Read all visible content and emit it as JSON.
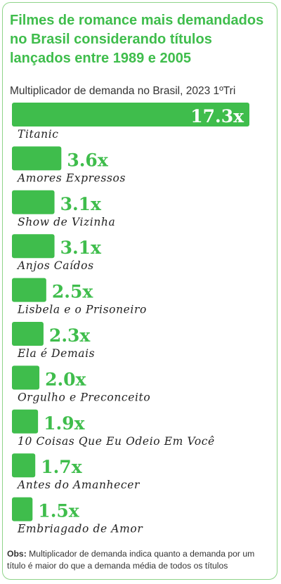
{
  "title": "Filmes de romance mais demandados no Brasil considerando títulos lançados entre 1989 e 2005",
  "subtitle": "Multiplicador de demanda no Brasil, 2023 1ºTri",
  "note": {
    "label": "Obs:",
    "text": " Multiplicador de demanda indica quanto a demanda por um título é maior do que a demanda média de todos os títulos"
  },
  "colors": {
    "accent": "#3fbd4c",
    "bar": "#3fbd4c",
    "value_on_bar": "#ffffff",
    "border": "#8fd48a"
  },
  "chart_data": {
    "type": "bar",
    "orientation": "horizontal",
    "title": "Filmes de romance mais demandados no Brasil considerando títulos lançados entre 1989 e 2005",
    "subtitle": "Multiplicador de demanda no Brasil, 2023 1ºTri",
    "categories": [
      "Titanic",
      "Amores Expressos",
      "Show de Vizinha",
      "Anjos Caídos",
      "Lisbela e o Prisoneiro",
      "Ela é Demais",
      "Orgulho e Preconceito",
      "10 Coisas Que Eu Odeio Em Você",
      "Antes do Amanhecer",
      "Embriagado de Amor"
    ],
    "values": [
      17.3,
      3.6,
      3.1,
      3.1,
      2.5,
      2.3,
      2.0,
      1.9,
      1.7,
      1.5
    ],
    "value_labels": [
      "17.3x",
      "3.6x",
      "3.1x",
      "3.1x",
      "2.5x",
      "2.3x",
      "2.0x",
      "1.9x",
      "1.7x",
      "1.5x"
    ],
    "xlim": [
      0,
      17.3
    ],
    "grid": false,
    "legend": "none"
  }
}
